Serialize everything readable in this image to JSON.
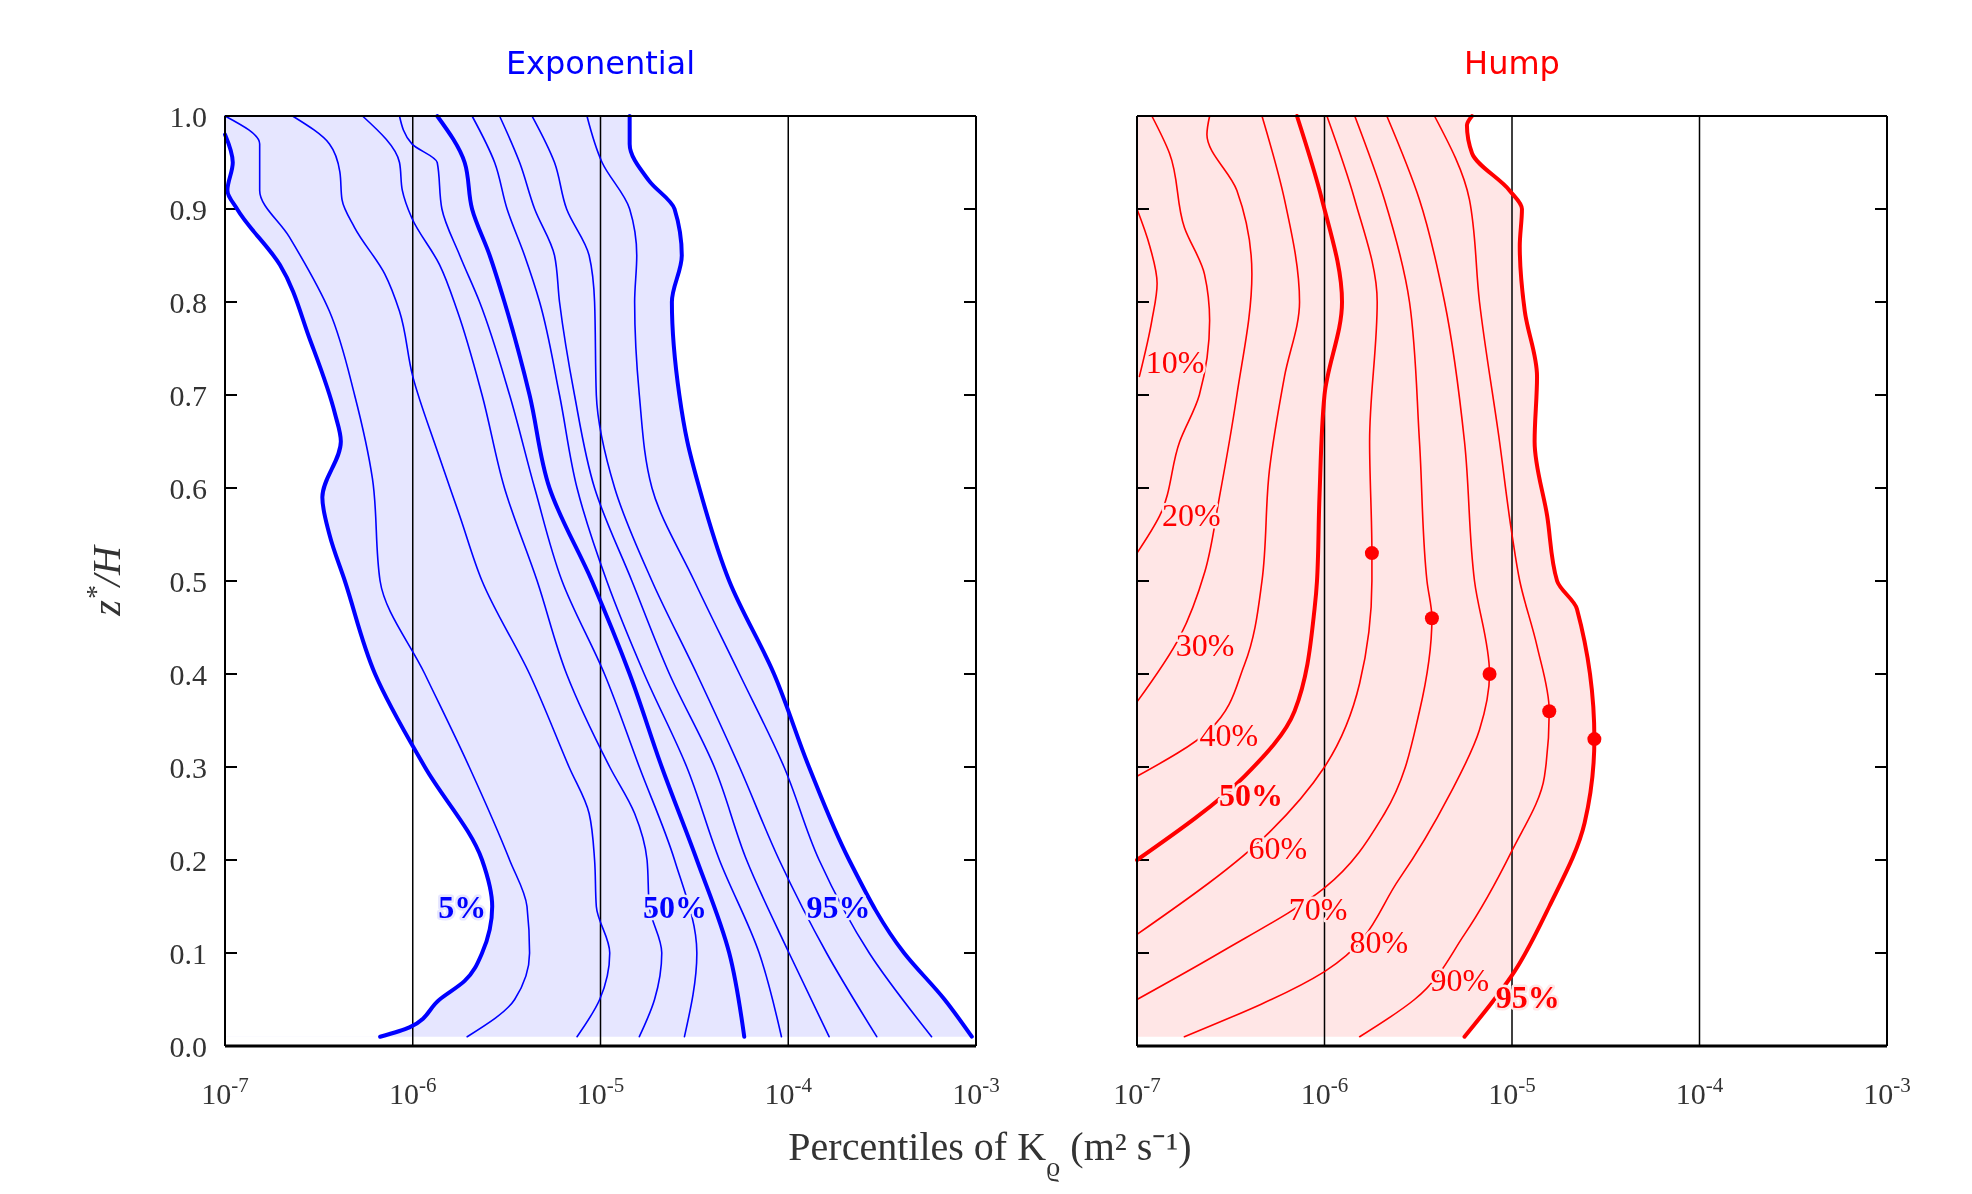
{
  "chart_data": [
    {
      "type": "line",
      "orientation": "horizontal",
      "title": "Exponential",
      "xlabel": "Percentiles of K$_{ϱ}$ (m² s⁻¹)",
      "ylabel": "z$^{*}$/H",
      "log": "x",
      "grid": "x",
      "xlim": [
        1e-07,
        0.001
      ],
      "ylim": [
        0,
        1
      ],
      "xticks": [
        {
          "value": 1e-07,
          "label": "10$^{-7}$"
        },
        {
          "value": 1e-06,
          "label": "10$^{-6}$"
        },
        {
          "value": 1e-05,
          "label": "10$^{-5}$"
        },
        {
          "value": 0.0001,
          "label": "10$^{-4}$"
        },
        {
          "value": 0.001,
          "label": "10$^{-3}$"
        }
      ],
      "yticks": [
        {
          "value": 0,
          "label": "0.0"
        },
        0.1,
        0.2,
        0.3,
        0.4,
        0.5,
        0.6,
        0.7,
        0.8,
        0.9,
        {
          "value": 1,
          "label": "1.0"
        }
      ],
      "series": [
        {
          "name": "5%",
          "type": "area",
          "color": "#0000ff",
          "x": [
            0.98,
            0.95,
            0.92,
            0.9,
            0.84,
            0.76,
            0.68,
            0.65,
            0.59,
            0.55,
            0.5,
            0.4,
            0.3,
            0.2,
            0.15,
            0.1,
            0.07,
            0.05,
            0.02,
            0.01
          ],
          "values": [
            1e-07,
            1.1e-07,
            1.03e-07,
            1.16e-07,
            1.96e-07,
            2.83e-07,
            3.85e-07,
            4.14e-07,
            3.3e-07,
            3.6e-07,
            4.35e-07,
            6.3e-07,
            1.16e-06,
            2.34e-06,
            2.65e-06,
            2.34e-06,
            1.89e-06,
            1.39e-06,
            9.6e-07,
            6.7e-07
          ]
        },
        {
          "color": "#0000ff",
          "x": [
            1.0,
            0.97,
            0.92,
            0.87,
            0.79,
            0.7,
            0.61,
            0.5,
            0.4,
            0.3,
            0.2,
            0.15,
            0.1,
            0.05,
            0.01
          ],
          "values": [
            1e-07,
            1.53e-07,
            1.53e-07,
            2.2e-07,
            3.6e-07,
            4.9e-07,
            6.1e-07,
            6.7e-07,
            1.16e-06,
            2e-06,
            3.28e-06,
            4.06e-06,
            4.19e-06,
            3.49e-06,
            1.95e-06
          ]
        },
        {
          "color": "#0000ff",
          "x": [
            1.0,
            0.97,
            0.94,
            0.91,
            0.88,
            0.83,
            0.79,
            0.72,
            0.64,
            0.57,
            0.5,
            0.4,
            0.3,
            0.25,
            0.2,
            0.15,
            0.1,
            0.05,
            0.01
          ],
          "values": [
            2.29e-07,
            3.6e-07,
            4.09e-07,
            4.2e-07,
            4.9e-07,
            7.1e-07,
            8.5e-07,
            1e-06,
            1.35e-06,
            1.78e-06,
            2.34e-06,
            4.19e-06,
            6.8e-06,
            8.7e-06,
            9.3e-06,
            9.5e-06,
            1.12e-05,
            9.9e-06,
            7.5e-06
          ]
        },
        {
          "color": "#0000ff",
          "x": [
            1.0,
            0.95,
            0.92,
            0.89,
            0.84,
            0.79,
            0.7,
            0.6,
            0.5,
            0.4,
            0.3,
            0.25,
            0.2,
            0.15,
            0.1,
            0.05,
            0.01
          ],
          "values": [
            5.4e-07,
            8.5e-07,
            8.8e-07,
            9.9e-07,
            1.39e-06,
            1.73e-06,
            2.34e-06,
            3.08e-06,
            4.6e-06,
            6.6e-06,
            1.12e-05,
            1.52e-05,
            1.77e-05,
            1.82e-05,
            2.12e-05,
            1.94e-05,
            1.61e-05
          ]
        },
        {
          "color": "#0000ff",
          "x": [
            1.0,
            0.97,
            0.95,
            0.9,
            0.85,
            0.8,
            0.7,
            0.6,
            0.5,
            0.4,
            0.3,
            0.2,
            0.1,
            0.01
          ],
          "values": [
            8.5e-07,
            9.9e-07,
            1.35e-06,
            1.43e-06,
            1.78e-06,
            2.27e-06,
            3.28e-06,
            4.46e-06,
            6.24e-06,
            1.05e-05,
            1.61e-05,
            2.48e-05,
            3.26e-05,
            2.8e-05
          ]
        },
        {
          "name": "50%",
          "color": "#0000ff",
          "x": [
            1.0,
            0.95,
            0.9,
            0.85,
            0.8,
            0.7,
            0.6,
            0.5,
            0.4,
            0.3,
            0.2,
            0.1,
            0.01
          ],
          "values": [
            1.35e-06,
            1.89e-06,
            2.07e-06,
            2.57e-06,
            3.08e-06,
            4.19e-06,
            5.35e-06,
            9e-06,
            1.43e-05,
            2.12e-05,
            3.26e-05,
            4.85e-05,
            5.83e-05
          ]
        },
        {
          "color": "#0000ff",
          "x": [
            1.0,
            0.95,
            0.9,
            0.85,
            0.8,
            0.7,
            0.6,
            0.5,
            0.4,
            0.3,
            0.2,
            0.1,
            0.01
          ],
          "values": [
            2.07e-06,
            2.73e-06,
            3.18e-06,
            3.94e-06,
            4.74e-06,
            6.05e-06,
            7.5e-06,
            1.08e-05,
            1.71e-05,
            2.88e-05,
            4.3e-05,
            7e-05,
            9.2e-05
          ]
        },
        {
          "color": "#0000ff",
          "x": [
            1.0,
            0.95,
            0.9,
            0.85,
            0.8,
            0.7,
            0.6,
            0.5,
            0.4,
            0.3,
            0.2,
            0.1,
            0.01
          ],
          "values": [
            2.9e-06,
            3.71e-06,
            4.46e-06,
            5.69e-06,
            6.05e-06,
            7.27e-06,
            9.3e-06,
            1.47e-05,
            2.33e-05,
            4.04e-05,
            6e-05,
            0.000101,
            0.000165
          ]
        },
        {
          "color": "#0000ff",
          "x": [
            1.0,
            0.95,
            0.9,
            0.85,
            0.8,
            0.7,
            0.6,
            0.5,
            0.4,
            0.3,
            0.2,
            0.1,
            0.01
          ],
          "values": [
            4.32e-06,
            5.69e-06,
            6.6e-06,
            8.7e-06,
            9.3e-06,
            9.5e-06,
            1.19e-05,
            1.88e-05,
            3.26e-05,
            5.5e-05,
            8.95e-05,
            0.00016,
            0.000296
          ]
        },
        {
          "color": "#0000ff",
          "x": [
            1.0,
            0.95,
            0.9,
            0.85,
            0.8,
            0.7,
            0.6,
            0.5,
            0.4,
            0.3,
            0.2,
            0.1,
            0.01
          ],
          "values": [
            8.47e-06,
            1.02e-05,
            1.43e-05,
            1.56e-05,
            1.52e-05,
            1.61e-05,
            1.88e-05,
            3.16e-05,
            5.5e-05,
            9.5e-05,
            0.000146,
            0.00027,
            0.00058
          ]
        },
        {
          "name": "95%",
          "type": "area",
          "color": "#0000ff",
          "x": [
            1.0,
            0.97,
            0.93,
            0.9,
            0.85,
            0.8,
            0.7,
            0.65,
            0.6,
            0.5,
            0.4,
            0.3,
            0.2,
            0.1,
            0.05,
            0.01
          ],
          "values": [
            1.43e-05,
            1.43e-05,
            1.82e-05,
            2.48e-05,
            2.71e-05,
            2.4e-05,
            2.63e-05,
            2.9e-05,
            3.36e-05,
            4.85e-05,
            8.4e-05,
            0.000129,
            0.000211,
            0.000414,
            0.00068,
            0.00095
          ]
        }
      ]
    },
    {
      "type": "line",
      "orientation": "horizontal",
      "title": "Hump",
      "log": "x",
      "grid": "x",
      "tick_labels": "x",
      "xlim": [
        1e-07,
        0.001
      ],
      "ylim": [
        0,
        1
      ],
      "xticks": [
        {
          "value": 1e-07,
          "label": "10$^{-7}$"
        },
        {
          "value": 1e-06,
          "label": "10$^{-6}$"
        },
        {
          "value": 1e-05,
          "label": "10$^{-5}$"
        },
        {
          "value": 0.0001,
          "label": "10$^{-4}$"
        },
        {
          "value": 0.001,
          "label": "10$^{-3}$"
        }
      ],
      "yticks": [
        0,
        0.1,
        0.2,
        0.3,
        0.4,
        0.5,
        0.6,
        0.7,
        0.8,
        0.9,
        1
      ],
      "series": [
        {
          "name": "10%",
          "color": "#ff0000",
          "x": [
            0.9,
            0.86,
            0.82,
            0.78,
            0.72
          ],
          "values": [
            1e-07,
            1.17e-07,
            1.28e-07,
            1.2e-07,
            1.03e-07
          ]
        },
        {
          "name": "20%",
          "color": "#ff0000",
          "x": [
            1.0,
            0.96,
            0.88,
            0.83,
            0.78,
            0.7,
            0.65,
            0.57,
            0.53
          ],
          "values": [
            1.2e-07,
            1.49e-07,
            1.79e-07,
            2.29e-07,
            2.44e-07,
            2.15e-07,
            1.69e-07,
            1.32e-07,
            1e-07
          ]
        },
        {
          "name": "30%",
          "color": "#ff0000",
          "x": [
            1.0,
            0.98,
            0.92,
            0.83,
            0.7,
            0.59,
            0.51,
            0.44,
            0.37
          ],
          "values": [
            2.44e-07,
            2.36e-07,
            3.41e-07,
            4.1e-07,
            3.41e-07,
            2.75e-07,
            2.3e-07,
            1.69e-07,
            1e-07
          ]
        },
        {
          "name": "40%",
          "color": "#ff0000",
          "x": [
            1.0,
            0.91,
            0.8,
            0.72,
            0.62,
            0.5,
            0.41,
            0.34,
            0.29
          ],
          "values": [
            4.64e-07,
            6.12e-07,
            7.36e-07,
            6.12e-07,
            5.09e-07,
            4.64e-07,
            3.74e-07,
            2.44e-07,
            1e-07
          ]
        },
        {
          "name": "50%",
          "color": "#ff0000",
          "x": [
            1.0,
            0.91,
            0.8,
            0.7,
            0.59,
            0.5,
            0.47,
            0.36,
            0.29,
            0.2
          ],
          "values": [
            7.13e-07,
            9.7e-07,
            1.24e-06,
            1e-06,
            9.4e-07,
            9.12e-07,
            8.85e-07,
            6.92e-07,
            3.74e-07,
            1e-07
          ]
        },
        {
          "name": "60%",
          "color": "#ff0000",
          "x": [
            1.0,
            0.91,
            0.8,
            0.65,
            0.53,
            0.5,
            0.39,
            0.3,
            0.23,
            0.12
          ],
          "values": [
            1.03e-06,
            1.45e-06,
            1.91e-06,
            1.74e-06,
            1.79e-06,
            1.79e-06,
            1.54e-06,
            1e-06,
            5.09e-07,
            1e-07
          ]
        },
        {
          "name": "70%",
          "color": "#ff0000",
          "x": [
            1.0,
            0.91,
            0.8,
            0.65,
            0.5,
            0.46,
            0.36,
            0.25,
            0.17,
            0.1,
            0.05
          ],
          "values": [
            1.45e-06,
            2.09e-06,
            2.84e-06,
            3.21e-06,
            3.52e-06,
            3.74e-06,
            3.21e-06,
            2.09e-06,
            1e-06,
            2.75e-07,
            1e-07
          ]
        },
        {
          "name": "80%",
          "color": "#ff0000",
          "x": [
            1.0,
            0.91,
            0.8,
            0.65,
            0.5,
            0.4,
            0.34,
            0.27,
            0.18,
            0.08,
            0.01
          ],
          "values": [
            2.15e-06,
            3.21e-06,
            4.37e-06,
            5.58e-06,
            6.31e-06,
            7.59e-06,
            6.71e-06,
            4.64e-06,
            2.51e-06,
            1e-06,
            1.79e-07
          ]
        },
        {
          "name": "90%",
          "color": "#ff0000",
          "x": [
            1.0,
            0.91,
            0.8,
            0.65,
            0.55,
            0.5,
            0.43,
            0.36,
            0.29,
            0.21,
            0.12,
            0.05,
            0.01
          ],
          "values": [
            3.86e-06,
            5.93e-06,
            6.71e-06,
            8.58e-06,
            1e-05,
            1.1e-05,
            1.36e-05,
            1.58e-05,
            1.49e-05,
            1e-05,
            5.58e-06,
            3.02e-06,
            1.54e-06
          ]
        },
        {
          "name": "95%",
          "type": "area",
          "color": "#ff0000",
          "x": [
            1.0,
            0.99,
            0.96,
            0.92,
            0.9,
            0.86,
            0.79,
            0.72,
            0.65,
            0.57,
            0.5,
            0.47,
            0.33,
            0.24,
            0.15,
            0.08,
            0.01
          ],
          "values": [
            6.12e-06,
            5.75e-06,
            6.12e-06,
            9.7e-06,
            1.13e-05,
            1.1e-05,
            1.17e-05,
            1.36e-05,
            1.32e-05,
            1.54e-05,
            1.74e-05,
            2.22e-05,
            2.75e-05,
            2.44e-05,
            1.58e-05,
            1.03e-05,
            5.58e-06
          ]
        },
        {
          "type": "scatter",
          "marker": "circle",
          "color": "#ff0000",
          "x": [
            0.53,
            0.46,
            0.4,
            0.36,
            0.33
          ],
          "values": [
            1.79e-06,
            3.74e-06,
            7.59e-06,
            1.58e-05,
            2.75e-05
          ]
        }
      ]
    }
  ]
}
